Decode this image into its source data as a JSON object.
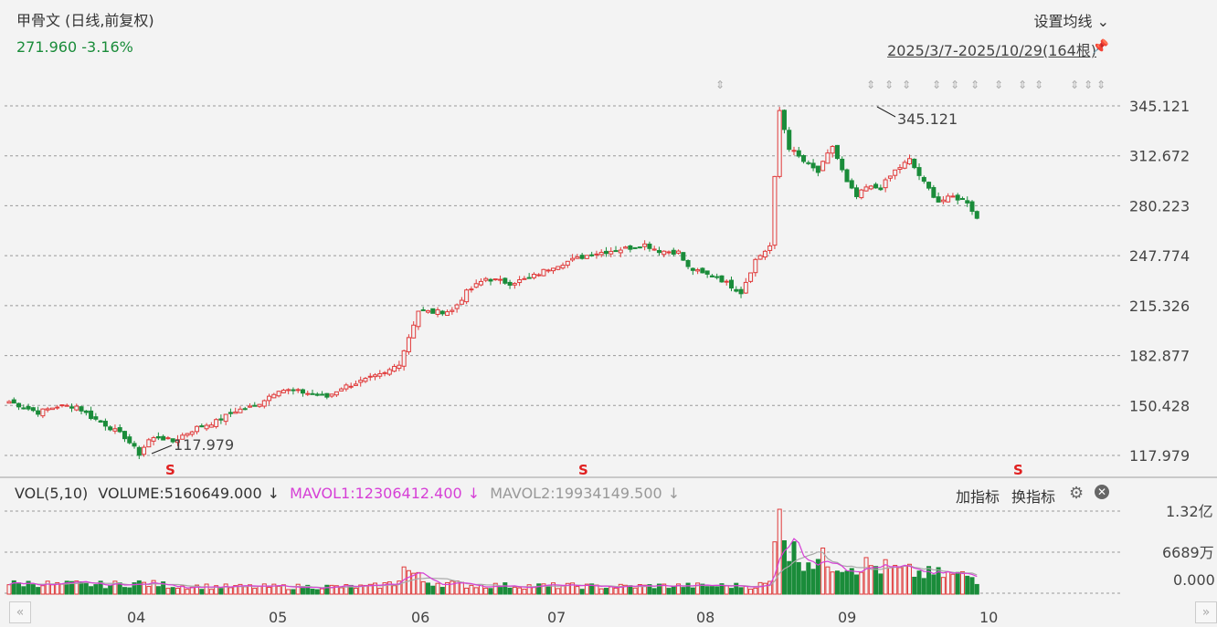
{
  "header": {
    "title": "甲骨文 (日线,前复权)",
    "price": "271.960",
    "change": "-3.16%",
    "ma_settings": "设置均线",
    "date_range": "2025/3/7-2025/10/29(164根)"
  },
  "volume_panel": {
    "label": "VOL(5,10)",
    "volume": "VOLUME:5160649.000",
    "mavol1": "MAVOL1:12306412.400",
    "mavol2": "MAVOL2:19934149.500",
    "add_indicator": "加指标",
    "switch_indicator": "换指标",
    "y_ticks": [
      "1.32亿",
      "6689万",
      "0.000"
    ]
  },
  "colors": {
    "up": "#e03a3a",
    "down": "#1a8c3a",
    "mavol1": "#d63fd6",
    "mavol2": "#a8a8a8"
  },
  "chart_data": {
    "type": "candlestick",
    "y_ticks": [
      "345.121",
      "312.672",
      "280.223",
      "247.774",
      "215.326",
      "182.877",
      "150.428",
      "117.979"
    ],
    "ylim": [
      117.979,
      345.121
    ],
    "x_ticks": [
      "04",
      "05",
      "06",
      "07",
      "08",
      "09",
      "10"
    ],
    "annotations": {
      "high": "345.121",
      "low": "117.979"
    },
    "markers": [
      "S",
      "S",
      "S"
    ],
    "anchors": [
      [
        0,
        153
      ],
      [
        6,
        146
      ],
      [
        10,
        150
      ],
      [
        14,
        150
      ],
      [
        17,
        143
      ],
      [
        20,
        138
      ],
      [
        24,
        130
      ],
      [
        27,
        119
      ],
      [
        29,
        128
      ],
      [
        31,
        130
      ],
      [
        34,
        127
      ],
      [
        36,
        131
      ],
      [
        39,
        136
      ],
      [
        43,
        140
      ],
      [
        47,
        147
      ],
      [
        51,
        150
      ],
      [
        56,
        161
      ],
      [
        61,
        159
      ],
      [
        66,
        156
      ],
      [
        69,
        162
      ],
      [
        73,
        166
      ],
      [
        78,
        171
      ],
      [
        81,
        178
      ],
      [
        83,
        195
      ],
      [
        85,
        212
      ],
      [
        88,
        211
      ],
      [
        92,
        212
      ],
      [
        95,
        224
      ],
      [
        99,
        233
      ],
      [
        104,
        230
      ],
      [
        108,
        233
      ],
      [
        113,
        241
      ],
      [
        117,
        245
      ],
      [
        121,
        249
      ],
      [
        125,
        251
      ],
      [
        129,
        253
      ],
      [
        132,
        255
      ],
      [
        135,
        251
      ],
      [
        139,
        250
      ],
      [
        141,
        240
      ],
      [
        144,
        236
      ],
      [
        147,
        234
      ],
      [
        150,
        228
      ],
      [
        152,
        224
      ],
      [
        155,
        245
      ],
      [
        158,
        254
      ],
      [
        160,
        342
      ],
      [
        162,
        318
      ],
      [
        165,
        309
      ],
      [
        168,
        302
      ],
      [
        171,
        319
      ],
      [
        174,
        295
      ],
      [
        176,
        286
      ],
      [
        178,
        292
      ],
      [
        181,
        292
      ],
      [
        184,
        303
      ],
      [
        187,
        310
      ],
      [
        190,
        295
      ],
      [
        193,
        283
      ],
      [
        196,
        286
      ],
      [
        199,
        283
      ],
      [
        201,
        272
      ]
    ],
    "volume_series": [
      [
        0,
        11
      ],
      [
        6,
        12
      ],
      [
        10,
        10
      ],
      [
        14,
        11
      ],
      [
        20,
        10
      ],
      [
        27,
        12
      ],
      [
        35,
        9
      ],
      [
        45,
        8
      ],
      [
        55,
        8
      ],
      [
        65,
        8
      ],
      [
        75,
        8
      ],
      [
        80,
        12
      ],
      [
        82,
        28
      ],
      [
        84,
        22
      ],
      [
        86,
        14
      ],
      [
        95,
        10
      ],
      [
        105,
        9
      ],
      [
        115,
        9
      ],
      [
        125,
        8
      ],
      [
        135,
        9
      ],
      [
        145,
        9
      ],
      [
        155,
        9
      ],
      [
        158,
        12
      ],
      [
        160,
        95
      ],
      [
        162,
        48
      ],
      [
        164,
        42
      ],
      [
        167,
        38
      ],
      [
        170,
        36
      ],
      [
        175,
        33
      ],
      [
        180,
        30
      ],
      [
        185,
        25
      ],
      [
        190,
        22
      ],
      [
        195,
        21
      ],
      [
        199,
        20
      ],
      [
        201,
        16
      ]
    ]
  }
}
